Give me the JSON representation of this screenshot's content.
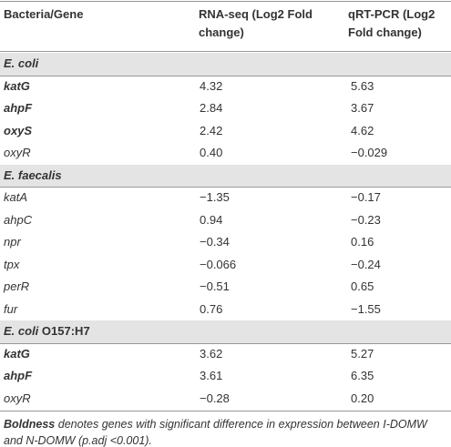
{
  "table": {
    "headers": [
      "Bacteria/Gene",
      "RNA-seq (Log2 Fold change)",
      "qRT-PCR (Log2 Fold change)"
    ],
    "sections": [
      {
        "organism": "E. coli",
        "rows": [
          {
            "gene": "katG",
            "bold": true,
            "rna_seq": "4.32",
            "qrt_pcr": "5.63"
          },
          {
            "gene": "ahpF",
            "bold": true,
            "rna_seq": "2.84",
            "qrt_pcr": "3.67"
          },
          {
            "gene": "oxyS",
            "bold": true,
            "rna_seq": "2.42",
            "qrt_pcr": "4.62"
          },
          {
            "gene": "oxyR",
            "bold": false,
            "rna_seq": "0.40",
            "qrt_pcr": "−0.029"
          }
        ]
      },
      {
        "organism": "E. faecalis",
        "rows": [
          {
            "gene": "katA",
            "bold": false,
            "rna_seq": "−1.35",
            "qrt_pcr": "−0.17"
          },
          {
            "gene": "ahpC",
            "bold": false,
            "rna_seq": "0.94",
            "qrt_pcr": "−0.23"
          },
          {
            "gene": "npr",
            "bold": false,
            "rna_seq": "−0.34",
            "qrt_pcr": "0.16"
          },
          {
            "gene": "tpx",
            "bold": false,
            "rna_seq": "−0.066",
            "qrt_pcr": "−0.24"
          },
          {
            "gene": "perR",
            "bold": false,
            "rna_seq": "−0.51",
            "qrt_pcr": "0.65"
          },
          {
            "gene": "fur",
            "bold": false,
            "rna_seq": "0.76",
            "qrt_pcr": "−1.55"
          }
        ]
      },
      {
        "organism": "E. coli",
        "strain": "O157:H7",
        "rows": [
          {
            "gene": "katG",
            "bold": true,
            "rna_seq": "3.62",
            "qrt_pcr": "5.27"
          },
          {
            "gene": "ahpF",
            "bold": true,
            "rna_seq": "3.61",
            "qrt_pcr": "6.35"
          },
          {
            "gene": "oxyR",
            "bold": false,
            "rna_seq": "−0.28",
            "qrt_pcr": "0.20"
          }
        ]
      }
    ],
    "footnote": {
      "emphasis": "Boldness",
      "text": "denotes genes with significant difference in expression between I-DOMW and N-DOMW (p.adj <0.001)."
    }
  }
}
